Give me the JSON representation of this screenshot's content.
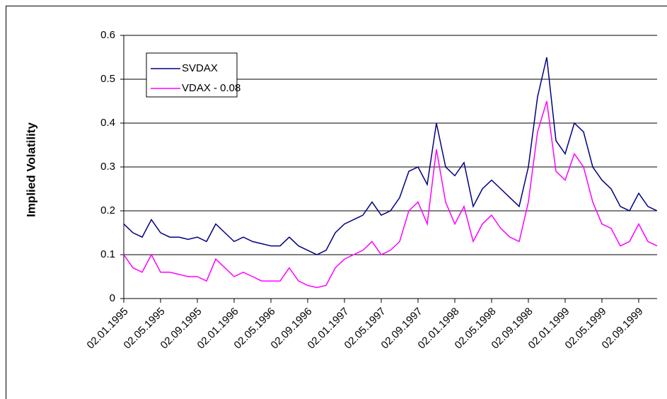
{
  "chart_data": {
    "type": "line",
    "y_label": "Implied Volatility",
    "categories": [
      "02.01.1995",
      null,
      null,
      null,
      "02.05.1995",
      null,
      null,
      null,
      "02.09.1995",
      null,
      null,
      null,
      "02.01.1996",
      null,
      null,
      null,
      "02.05.1996",
      null,
      null,
      null,
      "02.09.1996",
      null,
      null,
      null,
      "02.01.1997",
      null,
      null,
      null,
      "02.05.1997",
      null,
      null,
      null,
      "02.09.1997",
      null,
      null,
      null,
      "02.01.1998",
      null,
      null,
      null,
      "02.05.1998",
      null,
      null,
      null,
      "02.09.1998",
      null,
      null,
      null,
      "02.01.1999",
      null,
      null,
      null,
      "02.05.1999",
      null,
      null,
      null,
      "02.09.1999",
      null,
      null
    ],
    "series": [
      {
        "name": "SVDAX",
        "color": "#000080",
        "values": [
          0.17,
          0.15,
          0.14,
          0.18,
          0.15,
          0.14,
          0.14,
          0.135,
          0.14,
          0.13,
          0.17,
          0.15,
          0.13,
          0.14,
          0.13,
          0.125,
          0.12,
          0.12,
          0.14,
          0.12,
          0.11,
          0.1,
          0.11,
          0.15,
          0.17,
          0.18,
          0.19,
          0.22,
          0.19,
          0.2,
          0.23,
          0.29,
          0.3,
          0.26,
          0.4,
          0.3,
          0.28,
          0.31,
          0.21,
          0.25,
          0.27,
          0.25,
          0.23,
          0.21,
          0.3,
          0.46,
          0.55,
          0.36,
          0.33,
          0.4,
          0.38,
          0.3,
          0.27,
          0.25,
          0.21,
          0.2,
          0.24,
          0.21,
          0.2
        ]
      },
      {
        "name": "VDAX - 0.08",
        "color": "#ff00ff",
        "values": [
          0.1,
          0.07,
          0.06,
          0.1,
          0.06,
          0.06,
          0.055,
          0.05,
          0.05,
          0.04,
          0.09,
          0.07,
          0.05,
          0.06,
          0.05,
          0.04,
          0.04,
          0.04,
          0.07,
          0.04,
          0.03,
          0.025,
          0.03,
          0.07,
          0.09,
          0.1,
          0.11,
          0.13,
          0.1,
          0.11,
          0.13,
          0.2,
          0.22,
          0.17,
          0.34,
          0.22,
          0.17,
          0.21,
          0.13,
          0.17,
          0.19,
          0.16,
          0.14,
          0.13,
          0.22,
          0.38,
          0.45,
          0.29,
          0.27,
          0.33,
          0.3,
          0.22,
          0.17,
          0.16,
          0.12,
          0.13,
          0.17,
          0.13,
          0.12
        ]
      }
    ],
    "ylim": [
      0,
      0.6
    ],
    "yticks": [
      0,
      0.1,
      0.2,
      0.3,
      0.4,
      0.5,
      0.6
    ],
    "grid": true,
    "legend": "upper left"
  }
}
